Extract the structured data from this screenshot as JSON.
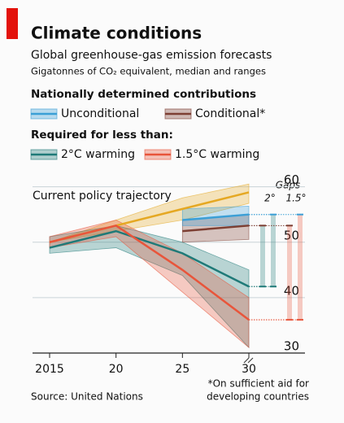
{
  "chart_data": {
    "type": "line",
    "title": "Climate conditions",
    "subtitle": "Global greenhouse-gas emission forecasts",
    "units_note": "Gigatonnes of CO₂ equivalent, median and ranges",
    "legend_groups": [
      "Nationally determined contributions",
      "Required for less than:"
    ],
    "gaps_label": "Gaps",
    "gap_labels": [
      "2°",
      "1.5°"
    ],
    "source": "Source: United Nations",
    "footnote": [
      "*On sufficient aid for",
      "developing countries"
    ],
    "x": [
      2015,
      2020,
      2025,
      2030
    ],
    "xlim": [
      2015,
      2030
    ],
    "xticks": [
      2015,
      {
        "value": 2020,
        "label": "20"
      },
      {
        "value": 2025,
        "label": "25"
      },
      {
        "value": 2030,
        "label": "30"
      }
    ],
    "ylim": [
      30,
      62
    ],
    "yticks": [
      30,
      40,
      50,
      60
    ],
    "grid": true,
    "series": [
      {
        "name": "Unconditional",
        "color": "#3b9fd6",
        "values": [
          null,
          null,
          54,
          55
        ],
        "low": [
          null,
          null,
          53,
          53
        ],
        "high": [
          null,
          null,
          56,
          56.5
        ]
      },
      {
        "name": "Conditional*",
        "color": "#7d3f33",
        "values": [
          null,
          null,
          52,
          53
        ],
        "low": [
          null,
          null,
          50,
          50.5
        ],
        "high": [
          null,
          null,
          54,
          55
        ]
      },
      {
        "name": "2°C warming",
        "color": "#1f7a78",
        "values": [
          49,
          52,
          48,
          42
        ],
        "low": [
          48,
          49,
          44,
          31
        ],
        "high": [
          51,
          53,
          50,
          45
        ]
      },
      {
        "name": "1.5°C warming",
        "color": "#e8553b",
        "values": [
          50,
          53,
          45,
          36
        ],
        "low": [
          49,
          51,
          41,
          31
        ],
        "high": [
          51,
          54,
          48,
          40
        ]
      },
      {
        "name": "Current policy trajectory",
        "color": "#e5a823",
        "values": [
          50,
          53,
          56,
          59
        ],
        "low": [
          50,
          52,
          54,
          57
        ],
        "high": [
          50,
          54,
          58,
          60.5
        ]
      }
    ]
  }
}
